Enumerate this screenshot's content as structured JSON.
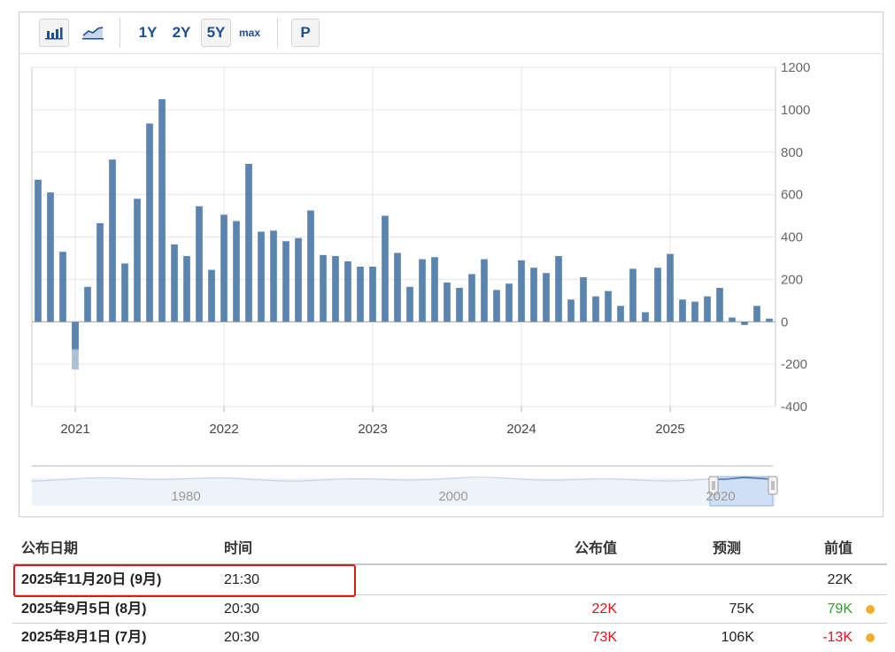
{
  "toolbar": {
    "chart_types": [
      {
        "name": "bar-chart-icon",
        "active": true
      },
      {
        "name": "line-chart-icon",
        "active": false
      }
    ],
    "ranges": [
      "1Y",
      "2Y",
      "5Y",
      "max"
    ],
    "active_range": "5Y",
    "p_button": "P"
  },
  "chart_data": {
    "type": "bar",
    "y_axis": {
      "ylim": [
        -400,
        1200
      ],
      "ticks": [
        1200,
        1000,
        800,
        600,
        400,
        200,
        0,
        -200,
        -400
      ],
      "position": "right"
    },
    "x_axis": {
      "ticks": [
        "2021",
        "2022",
        "2023",
        "2024",
        "2025"
      ]
    },
    "grid": true,
    "bar_color": "#5b84b1",
    "values": [
      670,
      610,
      330,
      -130,
      165,
      465,
      765,
      275,
      580,
      935,
      1050,
      365,
      310,
      545,
      245,
      505,
      475,
      745,
      425,
      430,
      380,
      395,
      525,
      315,
      310,
      285,
      260,
      260,
      500,
      325,
      165,
      295,
      305,
      185,
      160,
      225,
      295,
      150,
      180,
      290,
      255,
      230,
      310,
      105,
      210,
      120,
      145,
      75,
      250,
      45,
      255,
      320,
      105,
      95,
      120,
      160,
      20,
      -15,
      75,
      15
    ],
    "revised_values": [
      {
        "index": 3,
        "value": -225
      }
    ],
    "navigator": {
      "ticks": [
        "1980",
        "2000",
        "2020"
      ]
    }
  },
  "table": {
    "headers": {
      "date": "公布日期",
      "time": "时间",
      "actual": "公布值",
      "forecast": "预测",
      "previous": "前值"
    },
    "rows": [
      {
        "date": "2025年11月20日 (9月)",
        "time": "21:30",
        "actual": "",
        "forecast": "",
        "previous": "22K",
        "actual_color": "#222222",
        "previous_color": "#222222",
        "dot": false
      },
      {
        "date": "2025年9月5日 (8月)",
        "time": "20:30",
        "actual": "22K",
        "forecast": "75K",
        "previous": "79K",
        "actual_color": "#e4141b",
        "previous_color": "#2ca02c",
        "dot": true
      },
      {
        "date": "2025年8月1日 (7月)",
        "time": "20:30",
        "actual": "73K",
        "forecast": "106K",
        "previous": "-13K",
        "actual_color": "#e4141b",
        "previous_color": "#e4141b",
        "dot": true
      }
    ]
  }
}
